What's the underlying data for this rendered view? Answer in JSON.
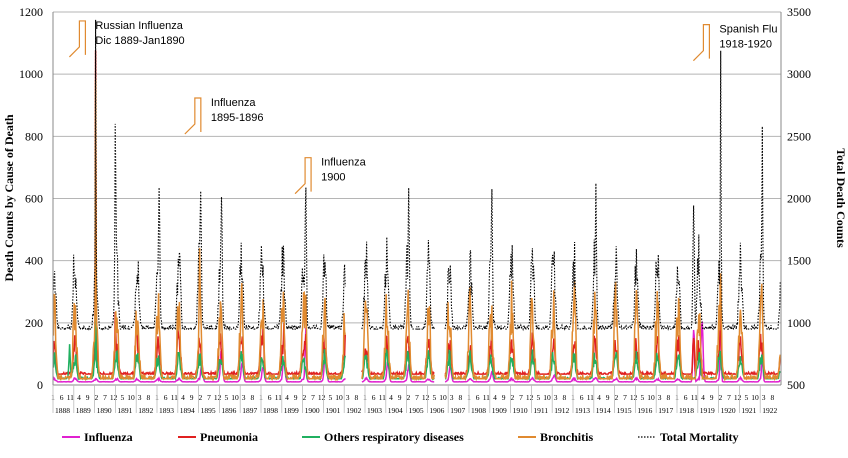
{
  "chart_data": {
    "type": "line",
    "x_start_year": 1888,
    "x_end_year": 1922,
    "year_labels": [
      "1888",
      "1889",
      "1890",
      "1891",
      "1892",
      "1893",
      "1894",
      "1895",
      "1896",
      "1897",
      "1898",
      "1899",
      "1900",
      "1901",
      "1902",
      "1903",
      "1904",
      "1905",
      "1906",
      "1907",
      "1908",
      "1909",
      "1910",
      "1911",
      "1912",
      "1913",
      "1914",
      "1915",
      "1916",
      "1917",
      "1918",
      "1919",
      "1920",
      "1921",
      "1922"
    ],
    "month_tick_labels": [
      "1",
      "6",
      "11",
      "4",
      "9",
      "2",
      "7",
      "12",
      "5",
      "10",
      "3",
      "8"
    ],
    "y_left": {
      "label": "Death Counts by Cause of Death",
      "min": 0,
      "max": 1200,
      "ticks": [
        0,
        200,
        400,
        600,
        800,
        1000,
        1200
      ]
    },
    "y_right": {
      "label": "Total Death Counts",
      "min": 500,
      "max": 3500,
      "ticks": [
        500,
        1000,
        1500,
        2000,
        2500,
        3000,
        3500
      ]
    },
    "grid": "horizontal",
    "legend_position": "bottom",
    "gaps": [
      [
        1902.05,
        1902.85
      ],
      [
        1906.35,
        1906.85
      ]
    ],
    "series": [
      {
        "name": "Influenza",
        "color": "#e020d0",
        "axis": "left",
        "dash": "solid",
        "baseline": 10,
        "season_amp": 10,
        "peaks": [
          [
            1890.05,
            12,
            0.2
          ],
          [
            1892.1,
            15,
            0.2
          ],
          [
            1895.15,
            60,
            0.3
          ],
          [
            1896.1,
            110,
            0.3
          ],
          [
            1897.1,
            70,
            0.3
          ],
          [
            1898.1,
            60,
            0.3
          ],
          [
            1899.1,
            80,
            0.3
          ],
          [
            1900.15,
            175,
            0.2
          ],
          [
            1901.1,
            115,
            0.3
          ],
          [
            1904.1,
            70,
            0.3
          ],
          [
            1905.1,
            60,
            0.3
          ],
          [
            1907.1,
            60,
            0.3
          ],
          [
            1909.1,
            45,
            0.3
          ],
          [
            1912.1,
            35,
            0.3
          ],
          [
            1914.1,
            25,
            0.3
          ],
          [
            1918.8,
            200,
            0.2
          ],
          [
            1919.2,
            190,
            0.3
          ],
          [
            1920.1,
            310,
            0.15
          ],
          [
            1922.1,
            95,
            0.2
          ]
        ]
      },
      {
        "name": "Pneumonia",
        "color": "#e02020",
        "axis": "left",
        "dash": "solid",
        "baseline": 35,
        "season_amp": 100,
        "peaks": [
          [
            1890.05,
            1000,
            0.08
          ],
          [
            1891.0,
            220,
            0.15
          ],
          [
            1892.0,
            180,
            0.2
          ],
          [
            1894.0,
            210,
            0.2
          ],
          [
            1896.0,
            140,
            0.2
          ],
          [
            1897.1,
            160,
            0.2
          ],
          [
            1898.1,
            180,
            0.2
          ],
          [
            1899.1,
            180,
            0.2
          ],
          [
            1900.15,
            160,
            0.2
          ],
          [
            1901.1,
            95,
            0.2
          ],
          [
            1918.8,
            170,
            0.2
          ],
          [
            1920.1,
            290,
            0.15
          ]
        ]
      },
      {
        "name": "Others respiratory diseases",
        "color": "#20b060",
        "axis": "left",
        "dash": "solid",
        "baseline": 20,
        "season_amp": 70,
        "peaks": [
          [
            1890.05,
            290,
            0.1
          ],
          [
            1888.8,
            120,
            0.2
          ],
          [
            1891.0,
            90,
            0.2
          ]
        ]
      },
      {
        "name": "Bronchitis",
        "color": "#e08a30",
        "axis": "left",
        "dash": "solid",
        "baseline": 20,
        "season_amp": 230,
        "peaks": [
          [
            1890.05,
            900,
            0.1
          ],
          [
            1895.05,
            480,
            0.15
          ],
          [
            1900.15,
            300,
            0.2
          ],
          [
            1920.1,
            390,
            0.2
          ]
        ]
      },
      {
        "name": "Total Mortality",
        "color": "#000000",
        "axis": "right",
        "dash": "dotted",
        "baseline": 950,
        "season_amp": 550,
        "peaks": [
          [
            1890.05,
            3300,
            0.1
          ],
          [
            1891.0,
            2450,
            0.15
          ],
          [
            1893.1,
            2150,
            0.2
          ],
          [
            1895.1,
            2200,
            0.2
          ],
          [
            1896.1,
            2000,
            0.2
          ],
          [
            1900.15,
            2000,
            0.2
          ],
          [
            1905.1,
            1950,
            0.2
          ],
          [
            1909.1,
            1950,
            0.2
          ],
          [
            1914.1,
            2000,
            0.2
          ],
          [
            1918.8,
            2000,
            0.2
          ],
          [
            1920.1,
            3050,
            0.12
          ],
          [
            1922.1,
            2500,
            0.15
          ]
        ]
      }
    ],
    "annotations": [
      {
        "lines": [
          "Russian Influenza",
          "Dic 1889-Jan1890"
        ],
        "x": 1889.75,
        "y_right": 3380
      },
      {
        "lines": [
          "Influenza",
          "1895-1896"
        ],
        "x": 1895.3,
        "y_right": 2760
      },
      {
        "lines": [
          "Influenza",
          "1900"
        ],
        "x": 1900.6,
        "y_right": 2280
      },
      {
        "lines": [
          "Spanish Flu",
          "1918-1920"
        ],
        "x": 1919.75,
        "y_right": 3350
      }
    ]
  }
}
